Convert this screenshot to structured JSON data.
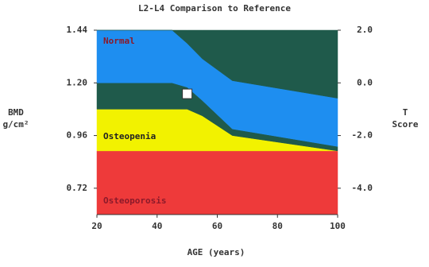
{
  "chart_data": {
    "type": "area",
    "title": "L2-L4 Comparison to Reference",
    "x_label": "AGE (years)",
    "y_label": [
      "BMD",
      "g/cm²"
    ],
    "y2_label": [
      "T",
      "Score"
    ],
    "x": [
      20,
      45,
      50,
      55,
      65,
      100
    ],
    "series": [
      {
        "name": "Osteoporosis",
        "color": "#ee3a3a",
        "values": [
          0.89,
          0.89,
          0.89,
          0.89,
          0.89,
          0.89
        ]
      },
      {
        "name": "Osteopenia",
        "color": "#f2f200",
        "values": [
          1.08,
          1.08,
          1.08,
          1.05,
          0.96,
          0.89
        ]
      },
      {
        "color": "#1f5a4b",
        "values": [
          1.2,
          1.2,
          1.18,
          1.12,
          0.99,
          0.91
        ]
      },
      {
        "name": "Normal",
        "color": "#1e8ef0",
        "values": [
          1.44,
          1.44,
          1.38,
          1.31,
          1.21,
          1.13
        ]
      },
      {
        "color": "#1f5a4b",
        "values": [
          1.44,
          1.44,
          1.44,
          1.44,
          1.44,
          1.44
        ]
      }
    ],
    "marker": {
      "x": 50,
      "y": 1.15,
      "color": "#ffffff"
    },
    "xlim": [
      20,
      100
    ],
    "xticks": [
      20,
      40,
      60,
      80,
      100
    ],
    "ylim": [
      0.6,
      1.44
    ],
    "yticks": [
      1.44,
      {
        "value": 1.2,
        "label": "1.20"
      },
      0.96,
      {
        "value": 0.72,
        "label": "0.72"
      }
    ],
    "y2lim": [
      -5,
      2
    ],
    "y2ticks": [
      {
        "value": 2,
        "label": "2.0"
      },
      {
        "value": 0,
        "label": "0.0"
      },
      {
        "value": -2,
        "label": "-2.0"
      },
      {
        "value": -4,
        "label": "-4.0"
      }
    ]
  }
}
